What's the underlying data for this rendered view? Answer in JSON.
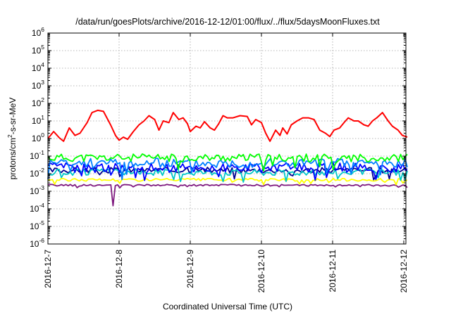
{
  "chart_data": {
    "type": "line",
    "title": "/data/run/goesPlots/archive/2016-12-12/01:00/flux/../flux/5daysMoonFluxes.txt",
    "xlabel": "Coordinated Universal Time (UTC)",
    "ylabel": {
      "base": "protons/cm",
      "sup": "2",
      "rest": "-s-sr-MeV"
    },
    "yscale": "log",
    "ylim_exp": [
      -6,
      6
    ],
    "y_ticks": [
      {
        "base": "10",
        "exp": "-6"
      },
      {
        "base": "10",
        "exp": "-5"
      },
      {
        "base": "10",
        "exp": "-4"
      },
      {
        "base": "10",
        "exp": "-3"
      },
      {
        "base": "10",
        "exp": "-2"
      },
      {
        "base": "10",
        "exp": "-1"
      },
      {
        "base": "10",
        "exp": "0"
      },
      {
        "base": "10",
        "exp": "1"
      },
      {
        "base": "10",
        "exp": "2"
      },
      {
        "base": "10",
        "exp": "3"
      },
      {
        "base": "10",
        "exp": "4"
      },
      {
        "base": "10",
        "exp": "5"
      },
      {
        "base": "10",
        "exp": "6"
      }
    ],
    "x_range_days": [
      0,
      5.05
    ],
    "x_ticks": [
      "2016-12-7",
      "2016-12-8",
      "2016-12-9",
      "2016-12-10",
      "2016-12-11",
      "2016-12-12"
    ],
    "grid": true,
    "series": [
      {
        "color": "#ff0000",
        "points": [
          [
            0,
            1.0
          ],
          [
            0.08,
            2.5
          ],
          [
            0.16,
            1.1
          ],
          [
            0.22,
            0.7
          ],
          [
            0.3,
            4
          ],
          [
            0.38,
            1.5
          ],
          [
            0.45,
            2
          ],
          [
            0.55,
            8
          ],
          [
            0.62,
            30
          ],
          [
            0.7,
            40
          ],
          [
            0.78,
            35
          ],
          [
            0.88,
            6
          ],
          [
            0.95,
            1.5
          ],
          [
            1.0,
            0.8
          ],
          [
            1.06,
            1.2
          ],
          [
            1.12,
            0.9
          ],
          [
            1.2,
            2.5
          ],
          [
            1.28,
            6
          ],
          [
            1.35,
            10
          ],
          [
            1.42,
            20
          ],
          [
            1.5,
            12
          ],
          [
            1.56,
            3
          ],
          [
            1.62,
            10
          ],
          [
            1.7,
            8
          ],
          [
            1.76,
            30
          ],
          [
            1.84,
            12
          ],
          [
            1.9,
            15
          ],
          [
            1.96,
            7
          ],
          [
            2.0,
            2.5
          ],
          [
            2.08,
            5
          ],
          [
            2.14,
            4
          ],
          [
            2.2,
            9
          ],
          [
            2.28,
            4
          ],
          [
            2.34,
            3
          ],
          [
            2.4,
            7
          ],
          [
            2.46,
            20
          ],
          [
            2.52,
            15
          ],
          [
            2.6,
            15
          ],
          [
            2.7,
            20
          ],
          [
            2.8,
            18
          ],
          [
            2.86,
            6
          ],
          [
            2.92,
            12
          ],
          [
            3.0,
            8
          ],
          [
            3.06,
            2
          ],
          [
            3.12,
            0.7
          ],
          [
            3.2,
            3
          ],
          [
            3.26,
            1.5
          ],
          [
            3.3,
            4
          ],
          [
            3.36,
            1.8
          ],
          [
            3.42,
            6
          ],
          [
            3.5,
            10
          ],
          [
            3.58,
            15
          ],
          [
            3.66,
            15
          ],
          [
            3.74,
            12
          ],
          [
            3.82,
            3
          ],
          [
            3.9,
            2
          ],
          [
            3.96,
            1.3
          ],
          [
            4.02,
            3
          ],
          [
            4.1,
            4
          ],
          [
            4.16,
            8
          ],
          [
            4.22,
            15
          ],
          [
            4.3,
            10
          ],
          [
            4.36,
            10
          ],
          [
            4.44,
            6
          ],
          [
            4.5,
            5
          ],
          [
            4.56,
            10
          ],
          [
            4.62,
            15
          ],
          [
            4.7,
            30
          ],
          [
            4.78,
            10
          ],
          [
            4.84,
            5
          ],
          [
            4.92,
            3
          ],
          [
            4.98,
            1.5
          ],
          [
            5.05,
            1.2
          ]
        ]
      },
      {
        "color": "#00ff00",
        "base": 0.08,
        "amp": 0.22,
        "seed": 11
      },
      {
        "color": "#0080ff",
        "base": 0.04,
        "amp": 0.28,
        "seed": 23
      },
      {
        "color": "#0000ff",
        "base": 0.022,
        "amp": 0.28,
        "seed": 37
      },
      {
        "color": "#00c8c8",
        "base": 0.012,
        "amp": 0.18,
        "seed": 51
      },
      {
        "color": "#000090",
        "base": 0.016,
        "amp": 0.16,
        "seed": 67
      },
      {
        "color": "#ffff00",
        "base": 0.0045,
        "amp": 0.08,
        "seed": 79
      },
      {
        "color": "#7f1a7f",
        "base": 0.0022,
        "amp": 0.05,
        "seed": 91,
        "dip": [
          0.92,
          0.00015
        ]
      }
    ]
  }
}
